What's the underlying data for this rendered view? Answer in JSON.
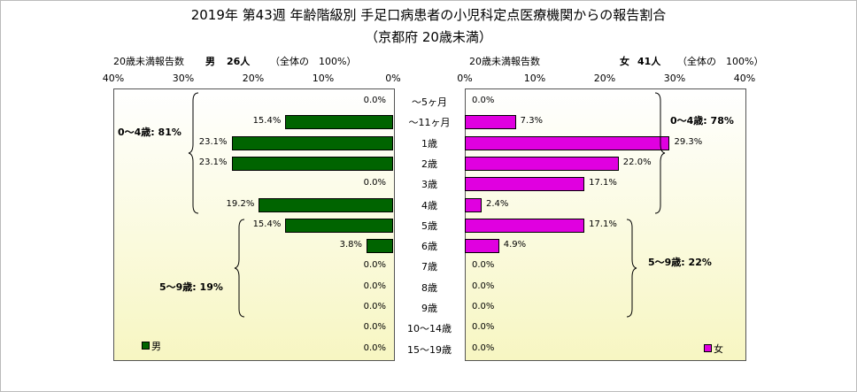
{
  "chart_data": {
    "type": "bar",
    "title": "2019年 第43週 年齢階級別 手足口病患者の小児科定点医療機関からの報告割合",
    "subtitle": "（京都府 20歳未満）",
    "categories": [
      "～5ヶ月",
      "～11ヶ月",
      "1歳",
      "2歳",
      "3歳",
      "4歳",
      "5歳",
      "6歳",
      "7歳",
      "8歳",
      "9歳",
      "10～14歳",
      "15～19歳"
    ],
    "series": [
      {
        "name": "男",
        "color": "#006400",
        "values": [
          0.0,
          15.4,
          23.1,
          23.1,
          0.0,
          19.2,
          15.4,
          3.8,
          0.0,
          0.0,
          0.0,
          0.0,
          0.0
        ],
        "labels": [
          "0.0%",
          "15.4%",
          "23.1%",
          "23.1%",
          "0.0%",
          "19.2%",
          "15.4%",
          "3.8%",
          "0.0%",
          "0.0%",
          "0.0%",
          "0.0%",
          "0.0%"
        ]
      },
      {
        "name": "女",
        "color": "#e000e0",
        "values": [
          0.0,
          7.3,
          29.3,
          22.0,
          17.1,
          2.4,
          17.1,
          4.9,
          0.0,
          0.0,
          0.0,
          0.0,
          0.0
        ],
        "labels": [
          "0.0%",
          "7.3%",
          "29.3%",
          "22.0%",
          "17.1%",
          "2.4%",
          "17.1%",
          "4.9%",
          "0.0%",
          "0.0%",
          "0.0%",
          "0.0%",
          "0.0%"
        ]
      }
    ],
    "xlim": [
      0,
      40
    ],
    "ticks_left": [
      "40%",
      "30%",
      "20%",
      "10%",
      "0%"
    ],
    "ticks_right": [
      "0%",
      "10%",
      "20%",
      "30%",
      "40%"
    ],
    "left_header": {
      "label": "20歳未満報告数",
      "sex": "男",
      "count": "26人",
      "note": "（全体の　100%）"
    },
    "right_header": {
      "label": "20歳未満報告数",
      "sex": "女",
      "count": "41人",
      "note": "（全体の　100%）"
    },
    "groups": {
      "male_0_4": "0～4歳: 81%",
      "male_5_9": "5～9歳: 19%",
      "female_0_4": "0～4歳: 78%",
      "female_5_9": "5～9歳: 22%"
    },
    "legend": {
      "male": "男",
      "female": "女"
    }
  }
}
